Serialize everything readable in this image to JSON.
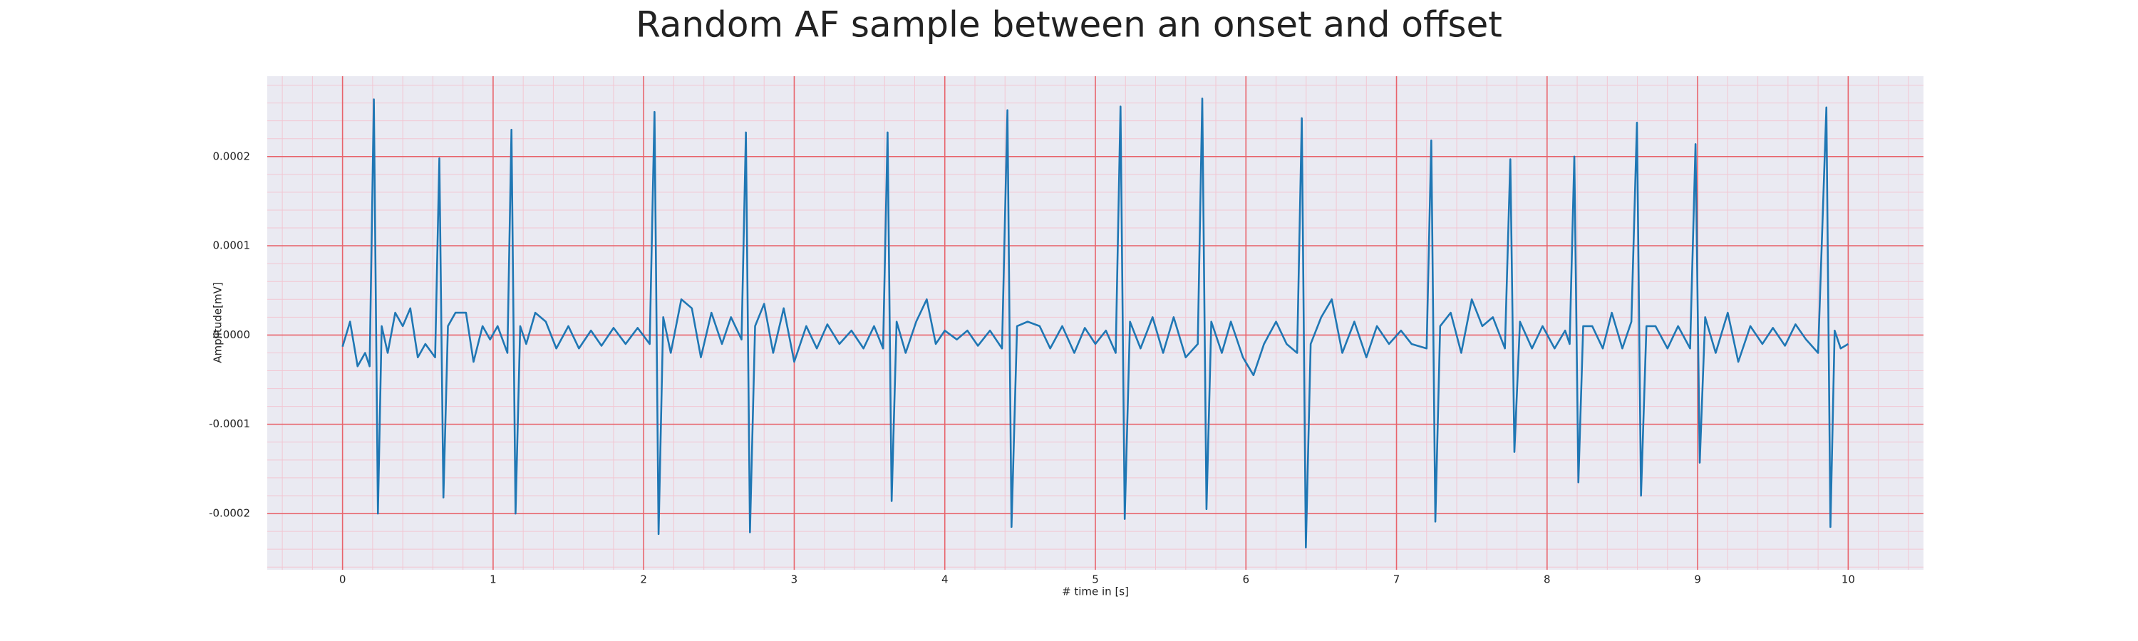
{
  "chart_data": {
    "type": "line",
    "title": "Random AF sample between an onset and offset",
    "xlabel": "# time in [s]",
    "ylabel": "Amplitude[mV]",
    "color": "#1f77b4",
    "background": "#eaeaf2",
    "grid": true,
    "grid_color": "#e8646c",
    "minor_grid": true,
    "minor_grid_color": "#f2c6d2",
    "xlim": [
      -0.5,
      10.5
    ],
    "xticks": [
      0,
      1,
      2,
      3,
      4,
      5,
      6,
      7,
      8,
      9,
      10
    ],
    "ylim": [
      -0.000263,
      0.00029
    ],
    "yticks": [
      -0.0002,
      -0.0001,
      {
        "value": 0,
        "label": "0.0000"
      },
      0.0001,
      0.0002
    ],
    "x": [
      0,
      0.05,
      0.1,
      0.15,
      0.18,
      0.208,
      0.235,
      0.26,
      0.3,
      0.35,
      0.4,
      0.45,
      0.5,
      0.55,
      0.615,
      0.643,
      0.67,
      0.7,
      0.75,
      0.82,
      0.87,
      0.93,
      0.98,
      1.03,
      1.095,
      1.122,
      1.149,
      1.18,
      1.22,
      1.28,
      1.35,
      1.42,
      1.5,
      1.57,
      1.65,
      1.72,
      1.8,
      1.88,
      1.96,
      2.04,
      2.072,
      2.099,
      2.13,
      2.18,
      2.25,
      2.32,
      2.38,
      2.45,
      2.52,
      2.58,
      2.65,
      2.679,
      2.706,
      2.74,
      2.8,
      2.86,
      2.93,
      3.0,
      3.08,
      3.15,
      3.22,
      3.3,
      3.38,
      3.46,
      3.53,
      3.59,
      3.62,
      3.647,
      3.68,
      3.74,
      3.81,
      3.88,
      3.94,
      4.0,
      4.08,
      4.15,
      4.22,
      4.3,
      4.38,
      4.416,
      4.443,
      4.48,
      4.55,
      4.63,
      4.7,
      4.78,
      4.86,
      4.93,
      5.0,
      5.07,
      5.135,
      5.167,
      5.195,
      5.23,
      5.3,
      5.38,
      5.45,
      5.52,
      5.6,
      5.68,
      5.71,
      5.738,
      5.77,
      5.84,
      5.9,
      5.98,
      6.05,
      6.12,
      6.2,
      6.27,
      6.34,
      6.371,
      6.398,
      6.43,
      6.5,
      6.57,
      6.64,
      6.72,
      6.8,
      6.87,
      6.95,
      7.03,
      7.1,
      7.2,
      7.231,
      7.258,
      7.29,
      7.36,
      7.43,
      7.5,
      7.57,
      7.64,
      7.72,
      7.756,
      7.783,
      7.82,
      7.9,
      7.97,
      8.05,
      8.12,
      8.15,
      8.181,
      8.208,
      8.24,
      8.3,
      8.37,
      8.43,
      8.5,
      8.56,
      8.597,
      8.624,
      8.66,
      8.72,
      8.8,
      8.87,
      8.95,
      8.986,
      9.014,
      9.05,
      9.12,
      9.2,
      9.27,
      9.35,
      9.43,
      9.5,
      9.58,
      9.65,
      9.72,
      9.8,
      9.855,
      9.882,
      9.91,
      9.95,
      10.0
    ],
    "values": [
      -1.3e-05,
      1.5e-05,
      -3.5e-05,
      -2e-05,
      -3.5e-05,
      0.000264,
      -0.0002,
      1e-05,
      -2e-05,
      2.5e-05,
      1e-05,
      3e-05,
      -2.5e-05,
      -1e-05,
      -2.5e-05,
      0.000198,
      -0.000182,
      1e-05,
      2.5e-05,
      2.5e-05,
      -3e-05,
      1e-05,
      -5e-06,
      1e-05,
      -2e-05,
      0.00023,
      -0.0002,
      1e-05,
      -1e-05,
      2.5e-05,
      1.5e-05,
      -1.5e-05,
      1e-05,
      -1.5e-05,
      5e-06,
      -1.2e-05,
      8e-06,
      -1e-05,
      8e-06,
      -1e-05,
      0.00025,
      -0.000223,
      2e-05,
      -2e-05,
      4e-05,
      3e-05,
      -2.5e-05,
      2.5e-05,
      -1e-05,
      2e-05,
      -5e-06,
      0.000227,
      -0.000221,
      1e-05,
      3.5e-05,
      -2e-05,
      3e-05,
      -3e-05,
      1e-05,
      -1.5e-05,
      1.2e-05,
      -1e-05,
      5e-06,
      -1.5e-05,
      1e-05,
      -1.5e-05,
      0.000227,
      -0.000186,
      1.5e-05,
      -2e-05,
      1.5e-05,
      4e-05,
      -1e-05,
      5e-06,
      -5e-06,
      5e-06,
      -1.2e-05,
      5e-06,
      -1.5e-05,
      0.000252,
      -0.000215,
      1e-05,
      1.5e-05,
      1e-05,
      -1.5e-05,
      1e-05,
      -2e-05,
      8e-06,
      -1e-05,
      5e-06,
      -2e-05,
      0.000256,
      -0.000206,
      1.5e-05,
      -1.5e-05,
      2e-05,
      -2e-05,
      2e-05,
      -2.5e-05,
      -1e-05,
      0.000265,
      -0.000195,
      1.5e-05,
      -2e-05,
      1.5e-05,
      -2.5e-05,
      -4.5e-05,
      -1e-05,
      1.5e-05,
      -1e-05,
      -2e-05,
      0.000243,
      -0.000238,
      -1e-05,
      2e-05,
      4e-05,
      -2e-05,
      1.5e-05,
      -2.5e-05,
      1e-05,
      -1e-05,
      5e-06,
      -1e-05,
      -1.5e-05,
      0.000218,
      -0.000209,
      1e-05,
      2.5e-05,
      -2e-05,
      4e-05,
      1e-05,
      2e-05,
      -1.5e-05,
      0.000197,
      -0.000131,
      1.5e-05,
      -1.5e-05,
      1e-05,
      -1.5e-05,
      5e-06,
      -1e-05,
      0.0002,
      -0.000165,
      1e-05,
      1e-05,
      -1.5e-05,
      2.5e-05,
      -1.5e-05,
      1.5e-05,
      0.000238,
      -0.00018,
      1e-05,
      1e-05,
      -1.5e-05,
      1e-05,
      -1.5e-05,
      0.000214,
      -0.000143,
      2e-05,
      -2e-05,
      2.5e-05,
      -3e-05,
      1e-05,
      -1e-05,
      8e-06,
      -1.2e-05,
      1.2e-05,
      -5e-06,
      -2e-05,
      0.000255,
      -0.000215,
      5e-06,
      -1.5e-05,
      -1e-05
    ]
  }
}
